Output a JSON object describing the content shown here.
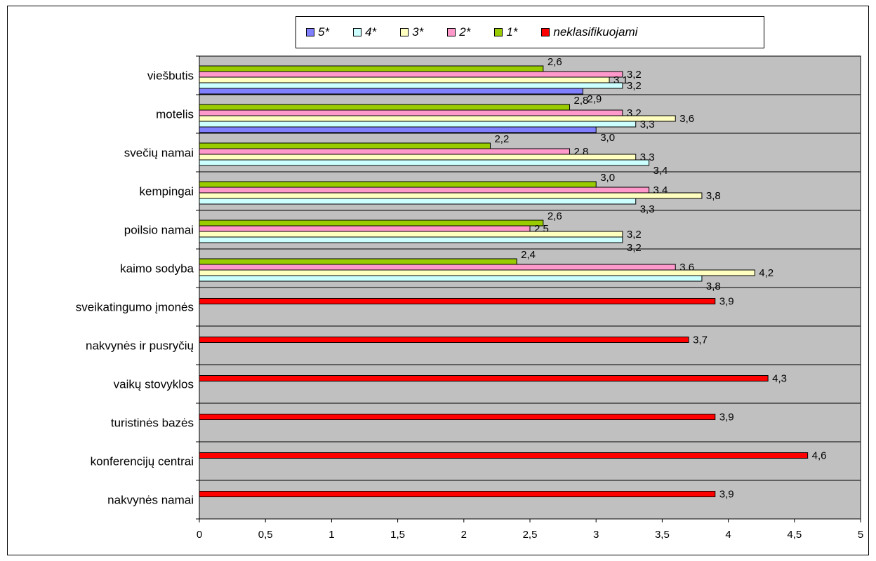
{
  "chart_data": {
    "type": "bar",
    "orientation": "horizontal",
    "categories": [
      "viešbutis",
      "motelis",
      "svečių namai",
      "kempingai",
      "poilsio namai",
      "kaimo sodyba",
      "sveikatingumo įmonės",
      "nakvynės ir pusryčių",
      "vaikų stovyklos",
      "turistinės bazės",
      "konferencijų centrai",
      "nakvynės namai"
    ],
    "series": [
      {
        "name": "5*",
        "color": "#8080ff",
        "values": [
          2.9,
          3.0,
          null,
          null,
          null,
          null,
          null,
          null,
          null,
          null,
          null,
          null
        ],
        "labels": [
          "2,9",
          "3,0",
          null,
          null,
          null,
          null,
          null,
          null,
          null,
          null,
          null,
          null
        ]
      },
      {
        "name": "4*",
        "color": "#ccffff",
        "values": [
          3.2,
          3.3,
          3.4,
          3.3,
          3.2,
          3.8,
          null,
          null,
          null,
          null,
          null,
          null
        ],
        "labels": [
          "3,2",
          "3,3",
          "3,4",
          "3,3",
          "3,2",
          "3,8",
          null,
          null,
          null,
          null,
          null,
          null
        ]
      },
      {
        "name": "3*",
        "color": "#ffffc0",
        "values": [
          3.1,
          3.6,
          3.3,
          3.8,
          3.2,
          4.2,
          null,
          null,
          null,
          null,
          null,
          null
        ],
        "labels": [
          "3,1",
          "3,6",
          "3,3",
          "3,8",
          "3,2",
          "4,2",
          null,
          null,
          null,
          null,
          null,
          null
        ]
      },
      {
        "name": "2*",
        "color": "#ff99cc",
        "values": [
          3.2,
          3.2,
          2.8,
          3.4,
          2.5,
          3.6,
          null,
          null,
          null,
          null,
          null,
          null
        ],
        "labels": [
          "3,2",
          "3,2",
          "2,8",
          "3,4",
          "2,5",
          "3,6",
          null,
          null,
          null,
          null,
          null,
          null
        ]
      },
      {
        "name": "1*",
        "color": "#99cc00",
        "values": [
          2.6,
          2.8,
          2.2,
          3.0,
          2.6,
          2.4,
          null,
          null,
          null,
          null,
          null,
          null
        ],
        "labels": [
          "2,6",
          "2,8",
          "2,2",
          "3,0",
          "2,6",
          "2,4",
          null,
          null,
          null,
          null,
          null,
          null
        ]
      },
      {
        "name": "neklasifikuojami",
        "color": "#ff0000",
        "values": [
          null,
          null,
          null,
          null,
          null,
          null,
          3.9,
          3.7,
          4.3,
          3.9,
          4.6,
          3.9
        ],
        "labels": [
          null,
          null,
          null,
          null,
          null,
          null,
          "3,9",
          "3,7",
          "4,3",
          "3,9",
          "4,6",
          "3,9"
        ]
      }
    ],
    "legend_labels": [
      "5*",
      "4*",
      "3*",
      "2*",
      "1*",
      "neklasifikuojami"
    ],
    "xlim": [
      0,
      5
    ],
    "xticks": [
      0,
      0.5,
      1,
      1.5,
      2,
      2.5,
      3,
      3.5,
      4,
      4.5,
      5
    ],
    "xtick_labels": [
      "0",
      "0,5",
      "1",
      "1,5",
      "2",
      "2,5",
      "3",
      "3,5",
      "4",
      "4,5",
      "5"
    ],
    "legend_position": "top",
    "grid": true,
    "plot_background": "#c0c0c0"
  }
}
